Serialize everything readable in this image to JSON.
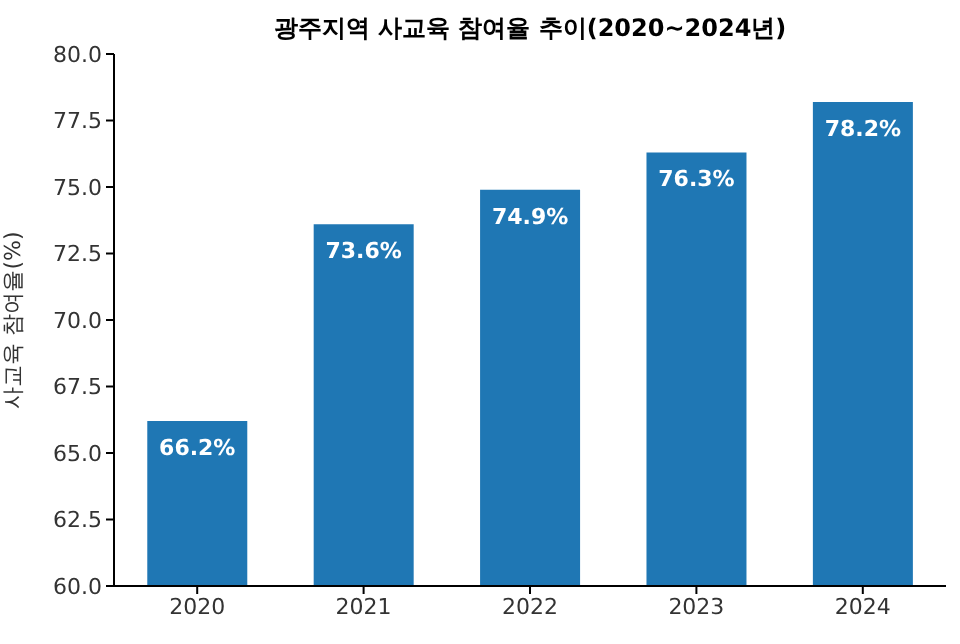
{
  "chart_data": {
    "type": "bar",
    "title": "광주지역 사교육 참여율 추이(2020~2024년)",
    "ylabel": "사교육 참여율(%)",
    "categories": [
      "2020",
      "2021",
      "2022",
      "2023",
      "2024"
    ],
    "values": [
      66.2,
      73.6,
      74.9,
      76.3,
      78.2
    ],
    "value_labels": [
      "66.2%",
      "73.6%",
      "74.9%",
      "76.3%",
      "78.2%"
    ],
    "color": "#1f77b4",
    "ylim": [
      60,
      80
    ],
    "yticks": [
      {
        "value": 60,
        "label": "60.0"
      },
      {
        "value": 62.5,
        "label": "62.5"
      },
      {
        "value": 65,
        "label": "65.0"
      },
      {
        "value": 67.5,
        "label": "67.5"
      },
      {
        "value": 70,
        "label": "70.0"
      },
      {
        "value": 72.5,
        "label": "72.5"
      },
      {
        "value": 75,
        "label": "75.0"
      },
      {
        "value": 77.5,
        "label": "77.5"
      },
      {
        "value": 80,
        "label": "80.0"
      }
    ],
    "grid": false,
    "legend": false
  }
}
